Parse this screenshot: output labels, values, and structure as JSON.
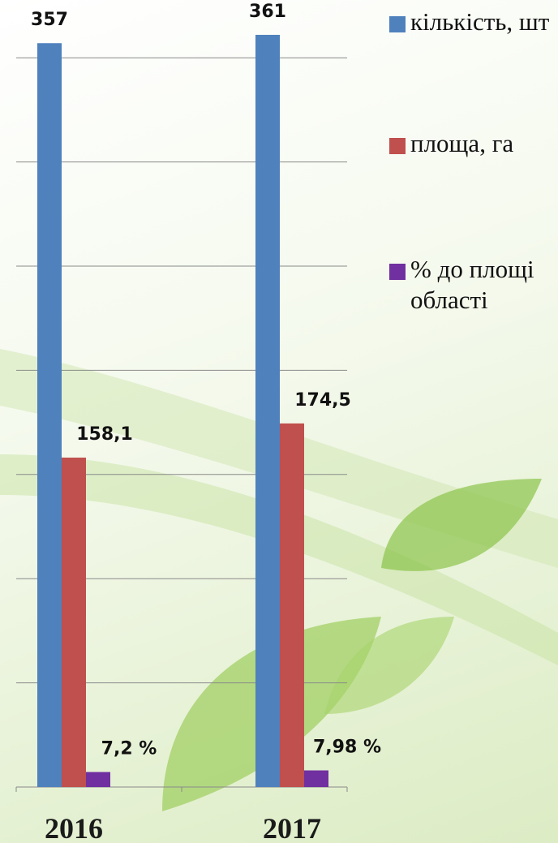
{
  "chart_data": {
    "type": "bar",
    "categories": [
      "2016",
      "2017"
    ],
    "series": [
      {
        "name": "кількість, шт",
        "color": "#4f81bd",
        "values": [
          357,
          361
        ],
        "value_labels": [
          "357",
          "361"
        ]
      },
      {
        "name": "площа, га",
        "color": "#c0504d",
        "values": [
          158.1,
          174.5
        ],
        "value_labels": [
          "158,1",
          "174,5"
        ]
      },
      {
        "name": "% до площі області",
        "color": "#7030a0",
        "values": [
          7.2,
          7.98
        ],
        "value_labels": [
          "7,2 %",
          "7,98 %"
        ]
      }
    ],
    "ylim": [
      0,
      375
    ],
    "yticks": [
      0,
      50,
      100,
      150,
      200,
      250,
      300,
      350
    ],
    "grid": true,
    "legend": "right"
  }
}
